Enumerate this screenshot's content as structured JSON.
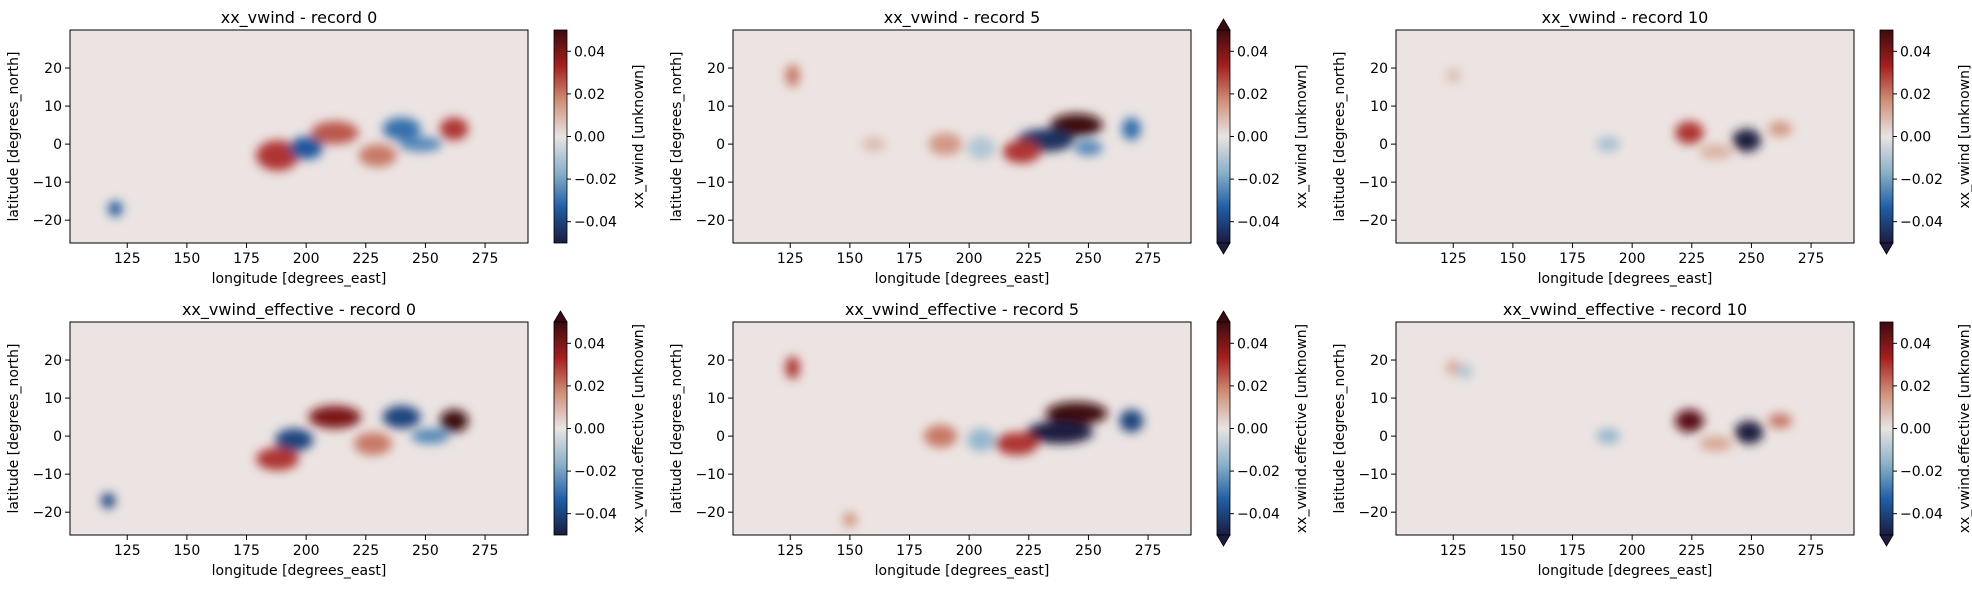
{
  "figure": {
    "xlabel": "longitude [degrees_east]",
    "ylabel": "latitude [degrees_north]",
    "xticks": [
      125,
      150,
      175,
      200,
      225,
      250,
      275
    ],
    "yticks": [
      -20,
      -10,
      0,
      10,
      20
    ],
    "cbar_ticks": [
      -0.04,
      -0.02,
      0.0,
      0.02,
      0.04
    ]
  },
  "chart_data": [
    {
      "type": "heatmap",
      "title": "xx_vwind - record 0",
      "xlabel": "longitude [degrees_east]",
      "ylabel": "latitude [degrees_north]",
      "xlim": [
        101,
        293
      ],
      "ylim": [
        -26,
        30
      ],
      "colorbar_label": "xx_vwind [unknown]",
      "clim": [
        -0.05,
        0.05
      ],
      "extend": "neither",
      "features": [
        {
          "lon": 188,
          "lat": -3,
          "value": 0.03,
          "sx": 9,
          "sy": 4
        },
        {
          "lon": 200,
          "lat": -1,
          "value": -0.035,
          "sx": 7,
          "sy": 3
        },
        {
          "lon": 212,
          "lat": 3,
          "value": 0.025,
          "sx": 10,
          "sy": 3
        },
        {
          "lon": 230,
          "lat": -3,
          "value": 0.02,
          "sx": 8,
          "sy": 3
        },
        {
          "lon": 240,
          "lat": 4,
          "value": -0.03,
          "sx": 8,
          "sy": 3
        },
        {
          "lon": 248,
          "lat": 0,
          "value": -0.025,
          "sx": 9,
          "sy": 2
        },
        {
          "lon": 262,
          "lat": 4,
          "value": 0.03,
          "sx": 6,
          "sy": 3
        },
        {
          "lon": 120,
          "lat": -17,
          "value": -0.035,
          "sx": 3,
          "sy": 2
        }
      ]
    },
    {
      "type": "heatmap",
      "title": "xx_vwind - record 5",
      "xlabel": "longitude [degrees_east]",
      "ylabel": "latitude [degrees_north]",
      "xlim": [
        101,
        293
      ],
      "ylim": [
        -26,
        30
      ],
      "colorbar_label": "xx_vwind [unknown]",
      "clim": [
        -0.05,
        0.05
      ],
      "extend": "both",
      "features": [
        {
          "lon": 245,
          "lat": 5,
          "value": 0.05,
          "sx": 11,
          "sy": 3
        },
        {
          "lon": 232,
          "lat": 1,
          "value": -0.045,
          "sx": 12,
          "sy": 3
        },
        {
          "lon": 222,
          "lat": -2,
          "value": 0.03,
          "sx": 8,
          "sy": 3
        },
        {
          "lon": 268,
          "lat": 4,
          "value": -0.03,
          "sx": 4,
          "sy": 3
        },
        {
          "lon": 250,
          "lat": -1,
          "value": -0.025,
          "sx": 6,
          "sy": 2
        },
        {
          "lon": 190,
          "lat": 0,
          "value": 0.015,
          "sx": 7,
          "sy": 3
        },
        {
          "lon": 205,
          "lat": -1,
          "value": -0.01,
          "sx": 6,
          "sy": 3
        },
        {
          "lon": 160,
          "lat": 0,
          "value": 0.008,
          "sx": 5,
          "sy": 2
        },
        {
          "lon": 126,
          "lat": 18,
          "value": 0.02,
          "sx": 3,
          "sy": 3
        }
      ]
    },
    {
      "type": "heatmap",
      "title": "xx_vwind - record 10",
      "xlabel": "longitude [degrees_east]",
      "ylabel": "latitude [degrees_north]",
      "xlim": [
        101,
        293
      ],
      "ylim": [
        -26,
        30
      ],
      "colorbar_label": "xx_vwind [unknown]",
      "clim": [
        -0.05,
        0.05
      ],
      "extend": "min",
      "features": [
        {
          "lon": 248,
          "lat": 1,
          "value": -0.05,
          "sx": 6,
          "sy": 3
        },
        {
          "lon": 224,
          "lat": 3,
          "value": 0.03,
          "sx": 6,
          "sy": 3
        },
        {
          "lon": 262,
          "lat": 4,
          "value": 0.015,
          "sx": 5,
          "sy": 2
        },
        {
          "lon": 190,
          "lat": 0,
          "value": -0.012,
          "sx": 5,
          "sy": 2
        },
        {
          "lon": 235,
          "lat": -2,
          "value": 0.01,
          "sx": 7,
          "sy": 2
        },
        {
          "lon": 125,
          "lat": 18,
          "value": 0.008,
          "sx": 3,
          "sy": 2
        }
      ]
    },
    {
      "type": "heatmap",
      "title": "xx_vwind_effective - record 0",
      "xlabel": "longitude [degrees_east]",
      "ylabel": "latitude [degrees_north]",
      "xlim": [
        101,
        293
      ],
      "ylim": [
        -26,
        30
      ],
      "colorbar_label": "xx_vwind.effective [unknown]",
      "clim": [
        -0.05,
        0.05
      ],
      "extend": "max",
      "features": [
        {
          "lon": 212,
          "lat": 5,
          "value": 0.04,
          "sx": 11,
          "sy": 3
        },
        {
          "lon": 195,
          "lat": -1,
          "value": -0.04,
          "sx": 8,
          "sy": 3
        },
        {
          "lon": 188,
          "lat": -6,
          "value": 0.03,
          "sx": 9,
          "sy": 3
        },
        {
          "lon": 240,
          "lat": 5,
          "value": -0.04,
          "sx": 8,
          "sy": 3
        },
        {
          "lon": 262,
          "lat": 4,
          "value": 0.05,
          "sx": 6,
          "sy": 3
        },
        {
          "lon": 228,
          "lat": -2,
          "value": 0.02,
          "sx": 8,
          "sy": 3
        },
        {
          "lon": 252,
          "lat": 0,
          "value": -0.025,
          "sx": 8,
          "sy": 2
        },
        {
          "lon": 117,
          "lat": -17,
          "value": -0.04,
          "sx": 3,
          "sy": 2
        }
      ]
    },
    {
      "type": "heatmap",
      "title": "xx_vwind_effective - record 5",
      "xlabel": "longitude [degrees_east]",
      "ylabel": "latitude [degrees_north]",
      "xlim": [
        101,
        293
      ],
      "ylim": [
        -26,
        30
      ],
      "colorbar_label": "xx_vwind.effective [unknown]",
      "clim": [
        -0.05,
        0.05
      ],
      "extend": "both",
      "features": [
        {
          "lon": 245,
          "lat": 6,
          "value": 0.06,
          "sx": 13,
          "sy": 3
        },
        {
          "lon": 238,
          "lat": 1,
          "value": -0.055,
          "sx": 14,
          "sy": 3
        },
        {
          "lon": 220,
          "lat": -2,
          "value": 0.03,
          "sx": 9,
          "sy": 3
        },
        {
          "lon": 268,
          "lat": 4,
          "value": -0.04,
          "sx": 5,
          "sy": 3
        },
        {
          "lon": 188,
          "lat": 0,
          "value": 0.02,
          "sx": 7,
          "sy": 3
        },
        {
          "lon": 205,
          "lat": -1,
          "value": -0.015,
          "sx": 6,
          "sy": 3
        },
        {
          "lon": 126,
          "lat": 18,
          "value": 0.03,
          "sx": 3,
          "sy": 3
        },
        {
          "lon": 150,
          "lat": -22,
          "value": 0.015,
          "sx": 3,
          "sy": 2
        }
      ]
    },
    {
      "type": "heatmap",
      "title": "xx_vwind_effective - record 10",
      "xlabel": "longitude [degrees_east]",
      "ylabel": "latitude [degrees_north]",
      "xlim": [
        101,
        293
      ],
      "ylim": [
        -26,
        30
      ],
      "colorbar_label": "xx_vwind.effective [unknown]",
      "clim": [
        -0.05,
        0.05
      ],
      "extend": "min",
      "features": [
        {
          "lon": 249,
          "lat": 1,
          "value": -0.06,
          "sx": 6,
          "sy": 3
        },
        {
          "lon": 224,
          "lat": 4,
          "value": 0.045,
          "sx": 6,
          "sy": 3
        },
        {
          "lon": 262,
          "lat": 4,
          "value": 0.02,
          "sx": 5,
          "sy": 2
        },
        {
          "lon": 190,
          "lat": 0,
          "value": -0.015,
          "sx": 5,
          "sy": 2
        },
        {
          "lon": 235,
          "lat": -2,
          "value": 0.012,
          "sx": 7,
          "sy": 2
        },
        {
          "lon": 125,
          "lat": 18,
          "value": 0.012,
          "sx": 3,
          "sy": 2
        },
        {
          "lon": 130,
          "lat": 17,
          "value": -0.01,
          "sx": 3,
          "sy": 2
        }
      ]
    }
  ],
  "colors": {
    "background": "#ffffff",
    "neutral": "#ece4e2",
    "cmap": [
      "#1a1c41",
      "#1e5ea6",
      "#8bb2c9",
      "#e8e4e3",
      "#d09078",
      "#a51e1e",
      "#3c0b0f"
    ]
  }
}
